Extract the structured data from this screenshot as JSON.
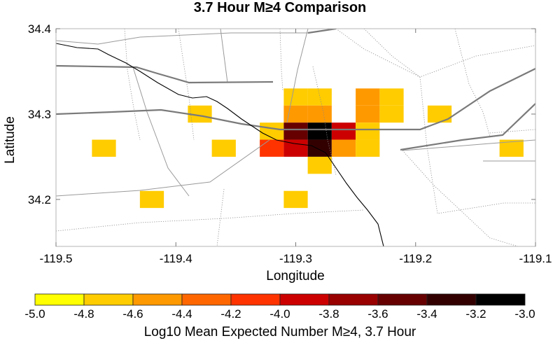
{
  "title": "3.7 Hour M≥4 Comparison",
  "map": {
    "xlabel": "Longitude",
    "ylabel": "Latitude",
    "lon_range": [
      -119.5,
      -119.1
    ],
    "lat_range": [
      34.145,
      34.4
    ],
    "lon_ticks": [
      -119.5,
      -119.4,
      -119.3,
      -119.2,
      -119.1
    ],
    "lon_tick_labels": [
      "-119.5",
      "-119.4",
      "-119.3",
      "-119.2",
      "-119.1"
    ],
    "lat_ticks": [
      34.4,
      34.3,
      34.2
    ],
    "lat_tick_labels": [
      "34.4",
      "34.3",
      "34.2"
    ],
    "cell_size_deg": 0.02,
    "cells": [
      {
        "lon": -119.3,
        "lat": 34.32,
        "value": -4.7
      },
      {
        "lon": -119.28,
        "lat": 34.32,
        "value": -4.7
      },
      {
        "lon": -119.24,
        "lat": 34.32,
        "value": -4.5
      },
      {
        "lon": -119.22,
        "lat": 34.32,
        "value": -4.7
      },
      {
        "lon": -119.3,
        "lat": 34.3,
        "value": -4.5
      },
      {
        "lon": -119.28,
        "lat": 34.3,
        "value": -4.5
      },
      {
        "lon": -119.24,
        "lat": 34.3,
        "value": -4.5
      },
      {
        "lon": -119.22,
        "lat": 34.3,
        "value": -4.7
      },
      {
        "lon": -119.38,
        "lat": 34.3,
        "value": -4.7
      },
      {
        "lon": -119.18,
        "lat": 34.3,
        "value": -4.7
      },
      {
        "lon": -119.32,
        "lat": 34.28,
        "value": -4.7
      },
      {
        "lon": -119.3,
        "lat": 34.28,
        "value": -3.5
      },
      {
        "lon": -119.28,
        "lat": 34.28,
        "value": -3.1
      },
      {
        "lon": -119.26,
        "lat": 34.28,
        "value": -3.9
      },
      {
        "lon": -119.24,
        "lat": 34.28,
        "value": -4.7
      },
      {
        "lon": -119.46,
        "lat": 34.26,
        "value": -4.7
      },
      {
        "lon": -119.36,
        "lat": 34.26,
        "value": -4.7
      },
      {
        "lon": -119.32,
        "lat": 34.26,
        "value": -4.1
      },
      {
        "lon": -119.3,
        "lat": 34.26,
        "value": -3.9
      },
      {
        "lon": -119.28,
        "lat": 34.26,
        "value": -3.3
      },
      {
        "lon": -119.26,
        "lat": 34.26,
        "value": -4.5
      },
      {
        "lon": -119.24,
        "lat": 34.26,
        "value": -4.7
      },
      {
        "lon": -119.12,
        "lat": 34.26,
        "value": -4.7
      },
      {
        "lon": -119.28,
        "lat": 34.24,
        "value": -4.7
      },
      {
        "lon": -119.42,
        "lat": 34.2,
        "value": -4.7
      },
      {
        "lon": -119.3,
        "lat": 34.2,
        "value": -4.7
      }
    ]
  },
  "colorbar": {
    "label": "Log10 Mean Expected Number M≥4, 3.7 Hour",
    "range": [
      -5.0,
      -3.0
    ],
    "bins": [
      {
        "from": -5.0,
        "to": -4.8,
        "color": "#ffff00"
      },
      {
        "from": -4.8,
        "to": -4.6,
        "color": "#ffcc00"
      },
      {
        "from": -4.6,
        "to": -4.4,
        "color": "#ff9900"
      },
      {
        "from": -4.4,
        "to": -4.2,
        "color": "#ff6600"
      },
      {
        "from": -4.2,
        "to": -4.0,
        "color": "#ff3300"
      },
      {
        "from": -4.0,
        "to": -3.8,
        "color": "#cc0000"
      },
      {
        "from": -3.8,
        "to": -3.6,
        "color": "#990000"
      },
      {
        "from": -3.6,
        "to": -3.4,
        "color": "#660000"
      },
      {
        "from": -3.4,
        "to": -3.2,
        "color": "#330000"
      },
      {
        "from": -3.2,
        "to": -3.0,
        "color": "#000000"
      }
    ],
    "tick_labels": [
      "-5.0",
      "-4.8",
      "-4.6",
      "-4.4",
      "-4.2",
      "-4.0",
      "-3.8",
      "-3.6",
      "-3.4",
      "-3.2",
      "-3.0"
    ]
  }
}
